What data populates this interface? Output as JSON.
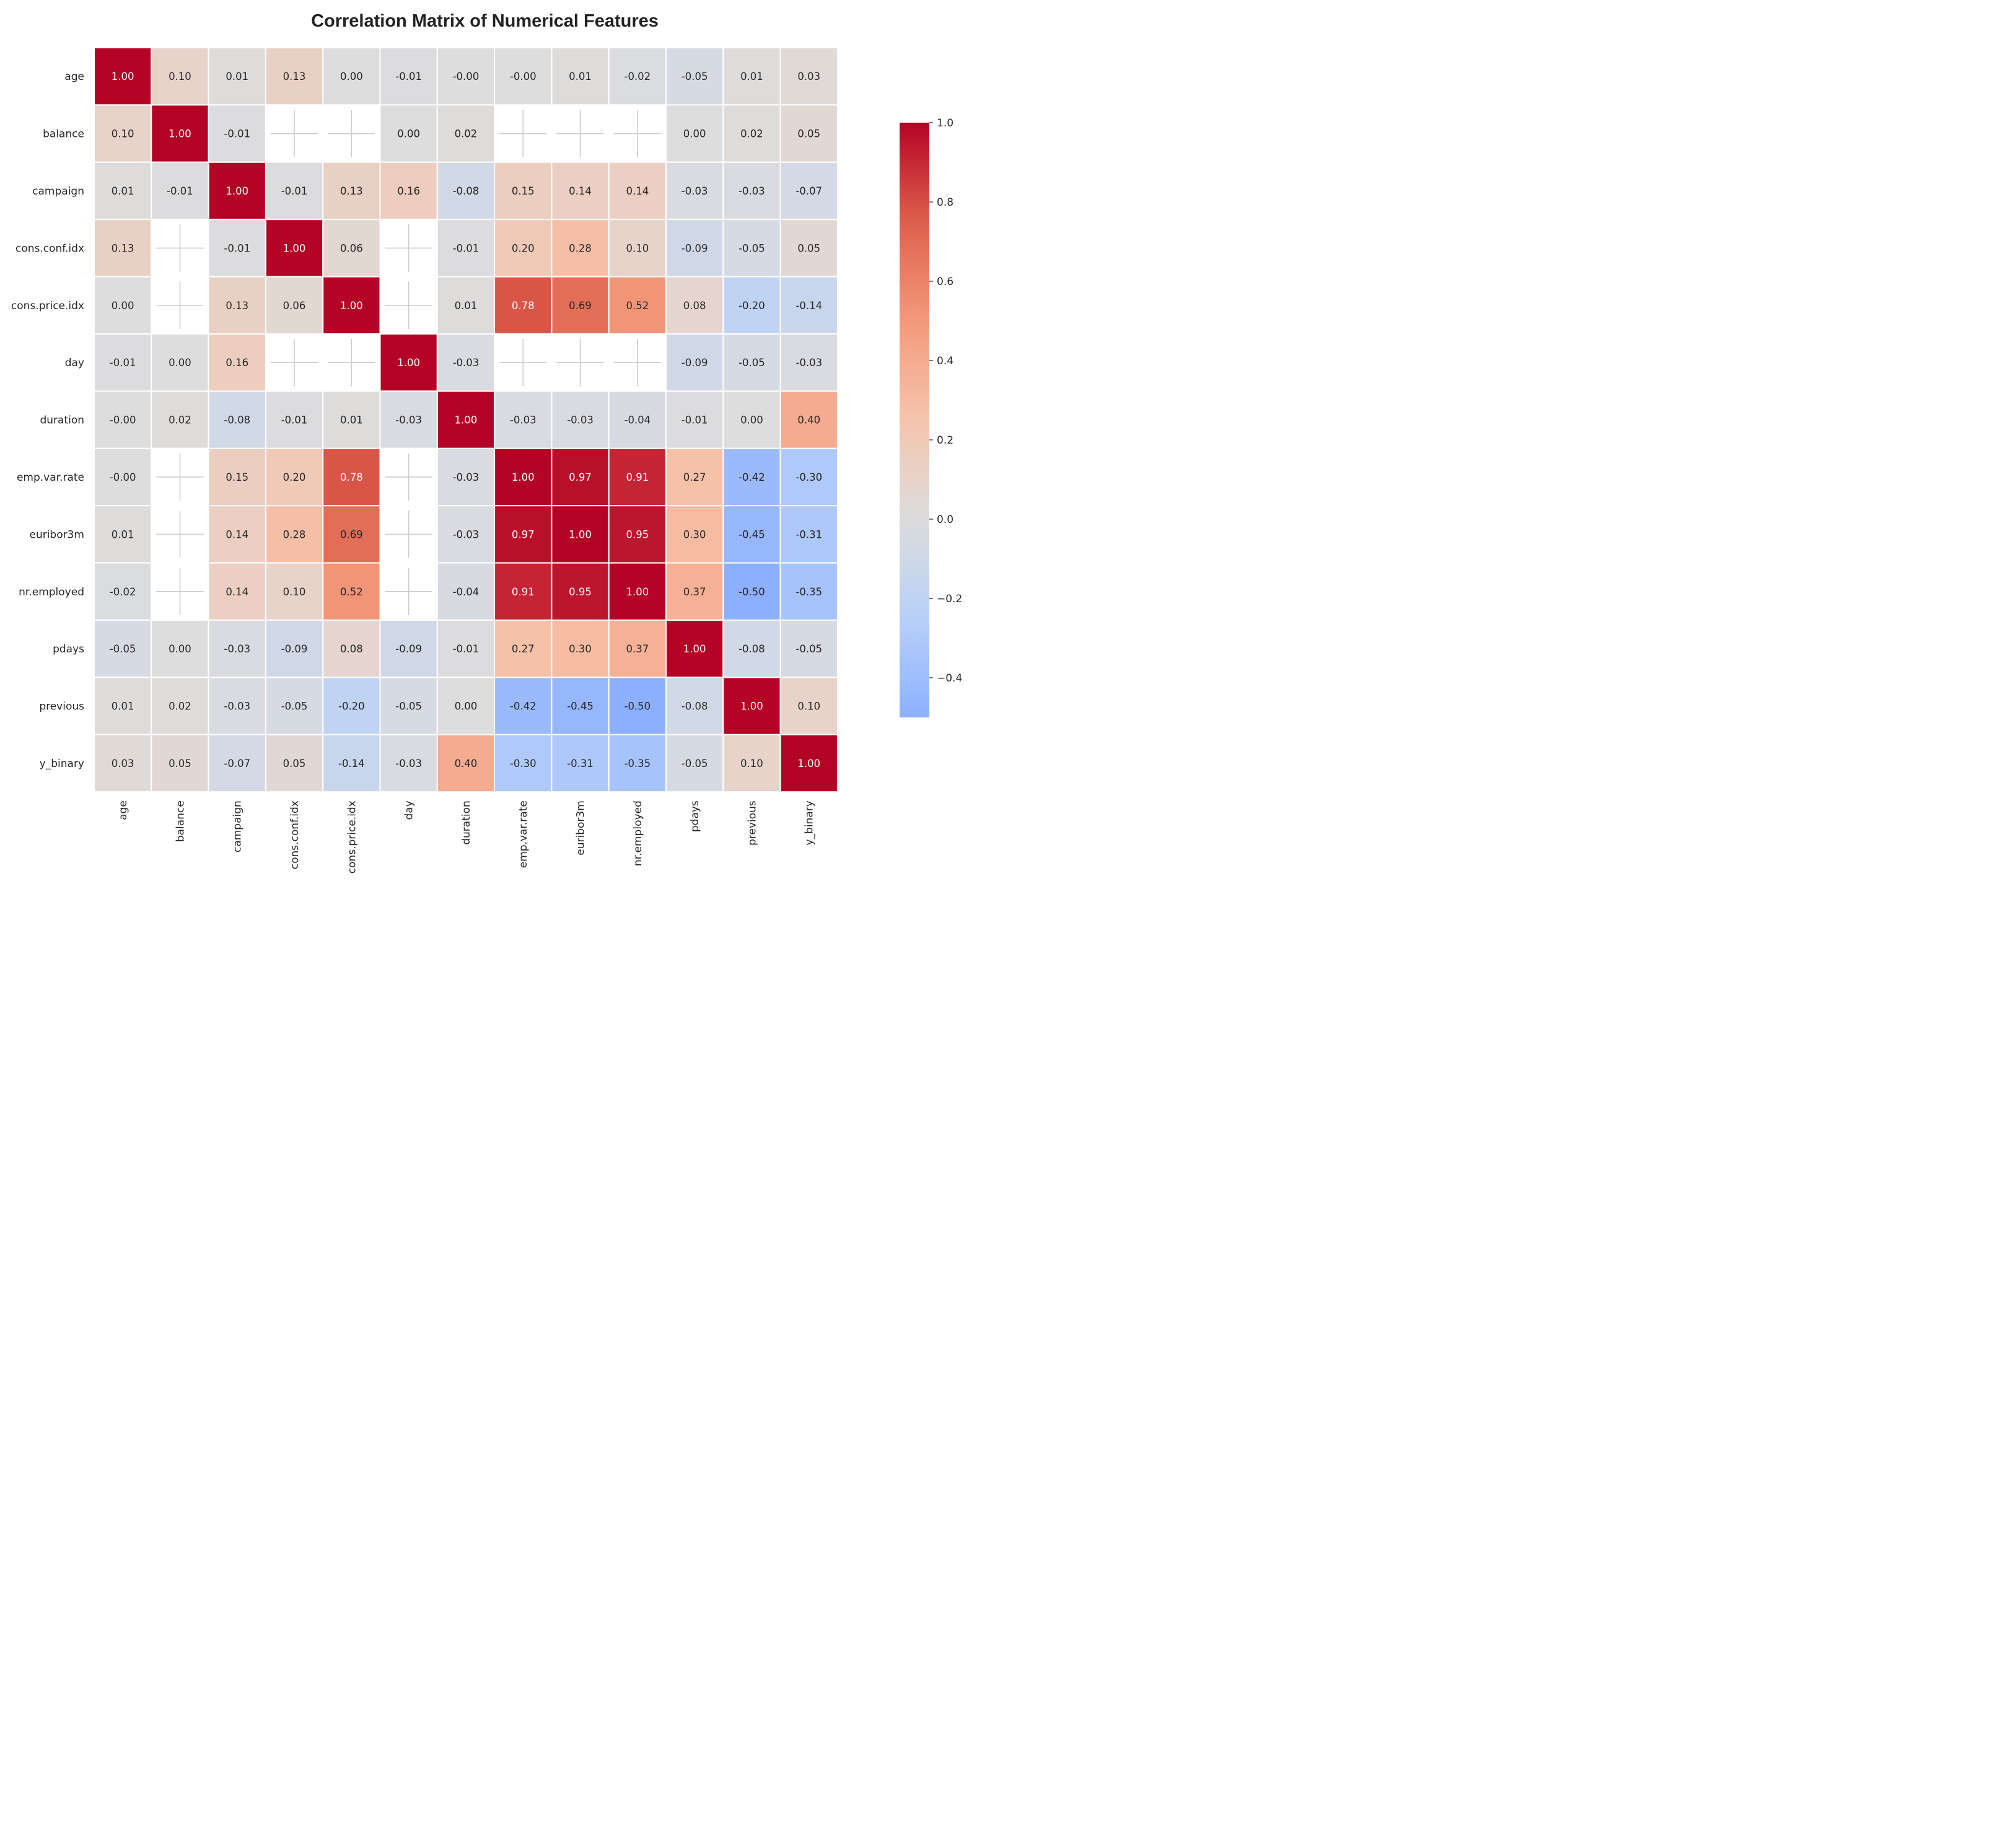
{
  "chart_data": {
    "type": "heatmap",
    "title": "Correlation Matrix of Numerical Features",
    "xlabel": "",
    "ylabel": "",
    "labels": [
      "age",
      "balance",
      "campaign",
      "cons.conf.idx",
      "cons.price.idx",
      "day",
      "duration",
      "emp.var.rate",
      "euribor3m",
      "nr.employed",
      "pdays",
      "previous",
      "y_binary"
    ],
    "matrix": [
      [
        1.0,
        0.1,
        0.01,
        0.13,
        0.0,
        -0.01,
        -0.0,
        -0.0,
        0.01,
        -0.02,
        -0.05,
        0.01,
        0.03
      ],
      [
        0.1,
        1.0,
        -0.01,
        null,
        null,
        0.0,
        0.02,
        null,
        null,
        null,
        0.0,
        0.02,
        0.05
      ],
      [
        0.01,
        -0.01,
        1.0,
        -0.01,
        0.13,
        0.16,
        -0.08,
        0.15,
        0.14,
        0.14,
        -0.03,
        -0.03,
        -0.07
      ],
      [
        0.13,
        null,
        -0.01,
        1.0,
        0.06,
        null,
        -0.01,
        0.2,
        0.28,
        0.1,
        -0.09,
        -0.05,
        0.05
      ],
      [
        0.0,
        null,
        0.13,
        0.06,
        1.0,
        null,
        0.01,
        0.78,
        0.69,
        0.52,
        0.08,
        -0.2,
        -0.14
      ],
      [
        -0.01,
        0.0,
        0.16,
        null,
        null,
        1.0,
        -0.03,
        null,
        null,
        null,
        -0.09,
        -0.05,
        -0.03
      ],
      [
        -0.0,
        0.02,
        -0.08,
        -0.01,
        0.01,
        -0.03,
        1.0,
        -0.03,
        -0.03,
        -0.04,
        -0.01,
        0.0,
        0.4
      ],
      [
        -0.0,
        null,
        0.15,
        0.2,
        0.78,
        null,
        -0.03,
        1.0,
        0.97,
        0.91,
        0.27,
        -0.42,
        -0.3
      ],
      [
        0.01,
        null,
        0.14,
        0.28,
        0.69,
        null,
        -0.03,
        0.97,
        1.0,
        0.95,
        0.3,
        -0.45,
        -0.31
      ],
      [
        -0.02,
        null,
        0.14,
        0.1,
        0.52,
        null,
        -0.04,
        0.91,
        0.95,
        1.0,
        0.37,
        -0.5,
        -0.35
      ],
      [
        -0.05,
        0.0,
        -0.03,
        -0.09,
        0.08,
        -0.09,
        -0.01,
        0.27,
        0.3,
        0.37,
        1.0,
        -0.08,
        -0.05
      ],
      [
        0.01,
        0.02,
        -0.03,
        -0.05,
        -0.2,
        -0.05,
        0.0,
        -0.42,
        -0.45,
        -0.5,
        -0.08,
        1.0,
        0.1
      ],
      [
        0.03,
        0.05,
        -0.07,
        0.05,
        -0.14,
        -0.03,
        0.4,
        -0.3,
        -0.31,
        -0.35,
        -0.05,
        0.1,
        1.0
      ]
    ],
    "colormap": "coolwarm",
    "vmin": -0.5,
    "vmax": 1.0,
    "colorbar_ticks": [
      1.0,
      0.8,
      0.6,
      0.4,
      0.2,
      0.0,
      -0.2,
      -0.4
    ],
    "colorbar_tick_labels": [
      "1.0",
      "0.8",
      "0.6",
      "0.4",
      "0.2",
      "0.0",
      "−0.2",
      "−0.4"
    ],
    "value_format": "2 decimals",
    "missing_cells": "blank with grid lines",
    "colors": {
      "low": "#7d9ff8",
      "mid": "#dddcdc",
      "high": "#b40426"
    }
  }
}
